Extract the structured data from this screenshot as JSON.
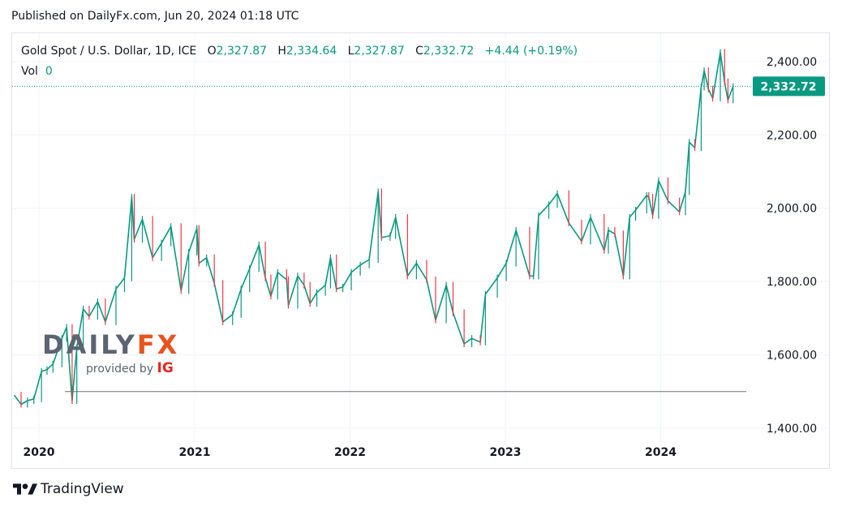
{
  "header": {
    "published": "Published on DailyFx.com, Jun 20, 2024 01:18 UTC"
  },
  "legend": {
    "symbol": "Gold Spot / U.S. Dollar, 1D, ICE",
    "o_label": "O",
    "o_value": "2,327.87",
    "h_label": "H",
    "h_value": "2,334.64",
    "l_label": "L",
    "l_value": "2,327.87",
    "c_label": "C",
    "c_value": "2,332.72",
    "change": "+4.44 (+0.19%)",
    "vol_label": "Vol",
    "vol_value": "0"
  },
  "watermark": {
    "brand_part1": "DAILY",
    "brand_part2": "FX",
    "provided_by": "provided by",
    "provider": "IG"
  },
  "footer": {
    "brand": "TradingView"
  },
  "colors": {
    "up": "#089981",
    "down": "#f23645",
    "grid": "#f0f3fa",
    "text": "#131722",
    "price_label_bg": "#089981"
  },
  "chart_data": {
    "type": "line",
    "title": "Gold Spot / U.S. Dollar, 1D, ICE",
    "xlabel": "",
    "ylabel": "",
    "x_ticks": [
      "2020",
      "2021",
      "2022",
      "2023",
      "2024"
    ],
    "y_ticks": [
      "1,400.00",
      "1,600.00",
      "1,800.00",
      "2,000.00",
      "2,200.00",
      "2,400.00"
    ],
    "ylim": [
      1360,
      2475
    ],
    "xlim": [
      "2019-11-01",
      "2024-07-20"
    ],
    "last_price": 2332.72,
    "last_price_label": "2,332.72",
    "reference_level": 1500,
    "grid": true,
    "series": [
      {
        "x": [
          "2019-11-04",
          "2019-11-20",
          "2019-12-05",
          "2019-12-20",
          "2020-01-07",
          "2020-01-20",
          "2020-02-03",
          "2020-02-24",
          "2020-03-06",
          "2020-03-19",
          "2020-03-30",
          "2020-04-14",
          "2020-04-28",
          "2020-05-18",
          "2020-06-05",
          "2020-06-30",
          "2020-07-20",
          "2020-08-06",
          "2020-08-12",
          "2020-08-31",
          "2020-09-24",
          "2020-10-15",
          "2020-11-06",
          "2020-11-30",
          "2020-12-18",
          "2021-01-06",
          "2021-01-11",
          "2021-01-29",
          "2021-02-16",
          "2021-03-08",
          "2021-03-31",
          "2021-04-20",
          "2021-05-10",
          "2021-06-01",
          "2021-06-16",
          "2021-06-29",
          "2021-07-15",
          "2021-08-05",
          "2021-08-09",
          "2021-08-31",
          "2021-09-15",
          "2021-09-29",
          "2021-10-15",
          "2021-11-04",
          "2021-11-16",
          "2021-11-30",
          "2021-12-15",
          "2022-01-04",
          "2022-01-25",
          "2022-02-15",
          "2022-03-08",
          "2022-03-16",
          "2022-04-05",
          "2022-04-18",
          "2022-05-16",
          "2022-06-06",
          "2022-06-30",
          "2022-07-21",
          "2022-08-15",
          "2022-08-31",
          "2022-09-26",
          "2022-10-14",
          "2022-11-03",
          "2022-11-15",
          "2022-12-13",
          "2023-01-03",
          "2023-01-26",
          "2023-02-27",
          "2023-03-08",
          "2023-03-20",
          "2023-04-13",
          "2023-05-03",
          "2023-05-30",
          "2023-06-29",
          "2023-07-20",
          "2023-08-21",
          "2023-08-31",
          "2023-09-15",
          "2023-10-05",
          "2023-10-20",
          "2023-11-03",
          "2023-11-29",
          "2023-12-04",
          "2023-12-13",
          "2023-12-27",
          "2024-01-18",
          "2024-02-14",
          "2024-02-28",
          "2024-03-08",
          "2024-03-21",
          "2024-04-05",
          "2024-04-12",
          "2024-04-22",
          "2024-05-02",
          "2024-05-20",
          "2024-05-30",
          "2024-06-07",
          "2024-06-19"
        ],
        "y": [
          1490,
          1465,
          1475,
          1480,
          1555,
          1560,
          1575,
          1645,
          1675,
          1475,
          1620,
          1725,
          1705,
          1745,
          1690,
          1780,
          1810,
          2030,
          1915,
          1970,
          1865,
          1905,
          1950,
          1775,
          1880,
          1945,
          1850,
          1865,
          1795,
          1690,
          1710,
          1780,
          1835,
          1900,
          1810,
          1760,
          1825,
          1805,
          1735,
          1815,
          1790,
          1740,
          1770,
          1790,
          1865,
          1780,
          1785,
          1825,
          1845,
          1860,
          2045,
          1920,
          1925,
          1975,
          1815,
          1850,
          1805,
          1695,
          1790,
          1715,
          1630,
          1645,
          1635,
          1765,
          1810,
          1850,
          1940,
          1815,
          1815,
          1980,
          2010,
          2040,
          1960,
          1910,
          1975,
          1885,
          1940,
          1930,
          1815,
          1975,
          1995,
          2035,
          2030,
          1980,
          2075,
          2020,
          1990,
          2045,
          2180,
          2165,
          2330,
          2375,
          2325,
          2300,
          2425,
          2345,
          2295,
          2332
        ]
      }
    ]
  }
}
